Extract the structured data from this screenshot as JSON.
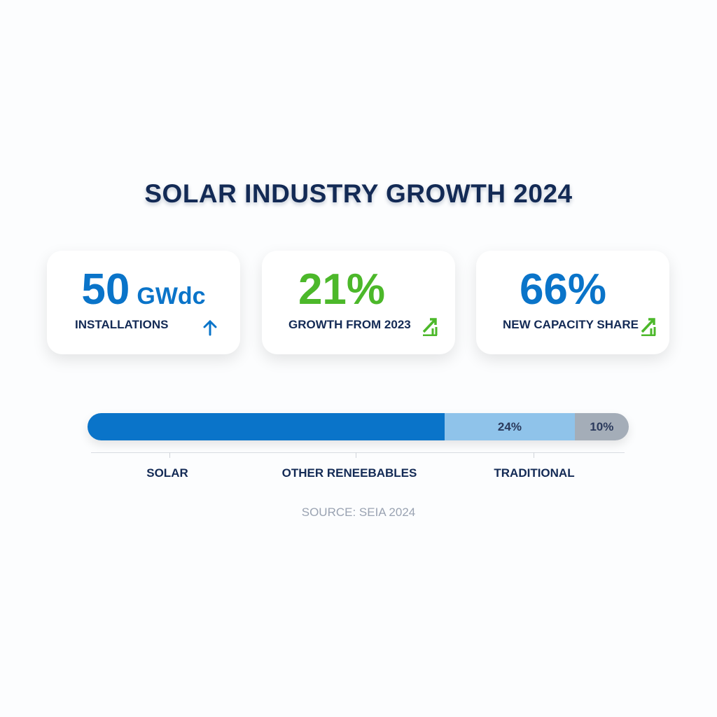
{
  "title": "SOLAR INDUSTRY GROWTH 2024",
  "cards": [
    {
      "value": "50",
      "unit": "GWdc",
      "label": "INSTALLATIONS",
      "icon": "arrow-up-icon",
      "color": "#0a74c9"
    },
    {
      "value": "21%",
      "label": "GROWTH FROM 2023",
      "icon": "trend-up-icon",
      "color": "#4cb82a"
    },
    {
      "value": "66%",
      "label": "NEW CAPACITY SHARE",
      "icon": "trend-up-icon",
      "color": "#0a74c9"
    }
  ],
  "chart_data": {
    "type": "bar",
    "stacked": true,
    "orientation": "horizontal",
    "categories": [
      "SOLAR",
      "OTHER RENEEBABLES",
      "TRADITIONAL"
    ],
    "values": [
      66,
      24,
      10
    ],
    "data_labels": [
      "",
      "24%",
      "10%"
    ],
    "colors": [
      "#0a74c9",
      "#8fc3ea",
      "#a4adb8"
    ]
  },
  "source": "SOURCE: SEIA 2024"
}
